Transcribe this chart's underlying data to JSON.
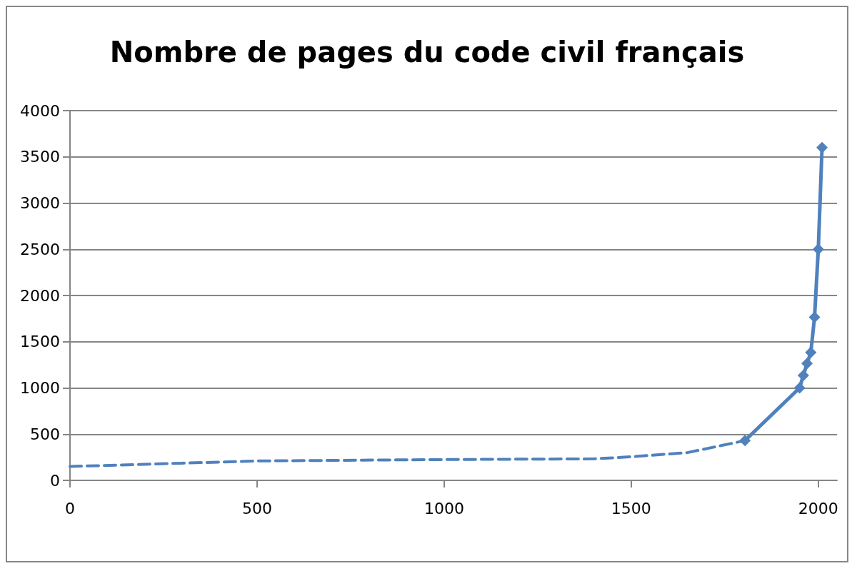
{
  "chart_data": {
    "type": "line",
    "title": "Nombre de pages du code civil français",
    "xlim": [
      0,
      2050
    ],
    "xticks": [
      0,
      500,
      1000,
      1500,
      2000
    ],
    "ylim": [
      0,
      4000
    ],
    "yticks": [
      0,
      500,
      1000,
      1500,
      2000,
      2500,
      3000,
      3500,
      4000
    ],
    "grid": "y",
    "series": [
      {
        "color": "#4f81bd",
        "line_style": "dashed",
        "marker": "none",
        "x": [
          0,
          500,
          1000,
          1400,
          1500,
          1650,
          1804
        ],
        "values": [
          150,
          210,
          225,
          233,
          255,
          300,
          430
        ]
      },
      {
        "color": "#4f81bd",
        "line_style": "solid",
        "marker": "diamond",
        "x": [
          1804,
          1950,
          1960,
          1970,
          1980,
          1990,
          2000,
          2010
        ],
        "values": [
          430,
          1000,
          1135,
          1265,
          1385,
          1765,
          2500,
          3600
        ]
      }
    ]
  }
}
